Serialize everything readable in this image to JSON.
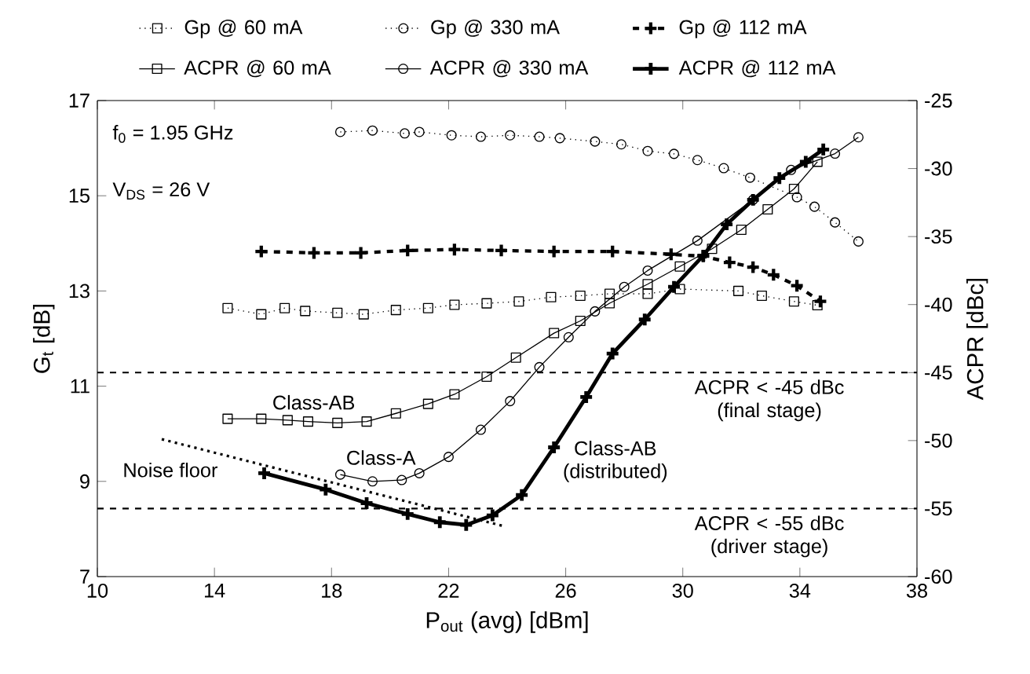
{
  "chart_data": {
    "type": "line",
    "xlabel": "P$_{out}$ (avg) [dBm]",
    "ylabel": "G$_{t}$ [dB]",
    "y2label": "ACPR [dBc]",
    "xlim": [
      10,
      38
    ],
    "xticks": [
      10,
      14,
      18,
      22,
      26,
      30,
      34,
      38
    ],
    "ylim": [
      7,
      17
    ],
    "yticks": [
      7,
      9,
      11,
      13,
      15,
      17
    ],
    "y2lim": [
      -60,
      -25
    ],
    "y2ticks": [
      -60,
      -55,
      -50,
      -45,
      -40,
      -35,
      -30,
      -25
    ],
    "legend": "top",
    "grid": false,
    "series": [
      {
        "name": "Gp @ 60 mA",
        "color": "#000000",
        "marker": "square",
        "line_style": "dotted",
        "x": [
          14.45,
          15.6,
          16.4,
          17.1,
          18.2,
          19.1,
          20.2,
          21.3,
          22.2,
          23.3,
          24.4,
          25.5,
          26.5,
          27.5,
          28.8,
          29.9,
          31.9,
          32.7,
          33.8,
          34.6
        ],
        "values": [
          12.64,
          12.51,
          12.64,
          12.58,
          12.54,
          12.51,
          12.6,
          12.64,
          12.71,
          12.74,
          12.78,
          12.87,
          12.9,
          12.94,
          12.94,
          13.04,
          13.0,
          12.9,
          12.78,
          12.7
        ]
      },
      {
        "name": "Gp @ 330 mA",
        "color": "#000000",
        "marker": "circle",
        "line_style": "dotted",
        "x": [
          18.3,
          19.4,
          20.5,
          21.0,
          22.1,
          23.1,
          24.1,
          25.1,
          25.8,
          27.0,
          27.9,
          28.8,
          29.7,
          30.5,
          31.4,
          32.3,
          33.9,
          34.5,
          35.2,
          36.0
        ],
        "values": [
          16.34,
          16.37,
          16.31,
          16.34,
          16.27,
          16.24,
          16.27,
          16.24,
          16.21,
          16.14,
          16.08,
          15.94,
          15.88,
          15.75,
          15.58,
          15.38,
          14.97,
          14.77,
          14.44,
          14.04
        ]
      },
      {
        "name": "Gp @ 112 mA",
        "color": "#000000",
        "marker": "cross",
        "line_style": "dashed",
        "x": [
          15.6,
          17.4,
          19.0,
          20.6,
          22.2,
          23.8,
          25.6,
          27.6,
          29.6,
          30.7,
          31.6,
          32.4,
          33.1,
          33.9,
          34.7
        ],
        "values": [
          13.83,
          13.8,
          13.8,
          13.85,
          13.87,
          13.85,
          13.83,
          13.83,
          13.77,
          13.73,
          13.6,
          13.5,
          13.34,
          13.11,
          12.78
        ]
      },
      {
        "name": "ACPR @ 60 mA",
        "color": "#000000",
        "marker": "square",
        "line_style": "solid",
        "axis": "y2",
        "x": [
          14.45,
          15.6,
          16.5,
          17.2,
          18.2,
          19.2,
          20.2,
          21.3,
          22.2,
          23.3,
          24.3,
          25.6,
          26.5,
          27.5,
          28.8,
          29.9,
          31.0,
          32.0,
          32.9,
          33.8,
          34.6
        ],
        "values": [
          -48.4,
          -48.4,
          -48.5,
          -48.6,
          -48.7,
          -48.6,
          -48.0,
          -47.3,
          -46.6,
          -45.3,
          -43.9,
          -42.1,
          -41.2,
          -39.9,
          -38.5,
          -37.2,
          -35.9,
          -34.5,
          -33.0,
          -31.5,
          -29.5
        ]
      },
      {
        "name": "ACPR @ 330 mA",
        "color": "#000000",
        "marker": "circle",
        "line_style": "solid",
        "axis": "y2",
        "x": [
          18.3,
          19.4,
          20.4,
          21.0,
          22.0,
          23.1,
          24.1,
          25.1,
          26.1,
          27.0,
          28.0,
          28.8,
          30.5,
          32.4,
          33.7,
          35.2,
          36.0
        ],
        "values": [
          -52.5,
          -53.0,
          -52.9,
          -52.4,
          -51.2,
          -49.2,
          -47.1,
          -44.6,
          -42.4,
          -40.5,
          -38.7,
          -37.5,
          -35.3,
          -32.3,
          -30.1,
          -28.9,
          -27.7
        ]
      },
      {
        "name": "ACPR @ 112 mA",
        "color": "#000000",
        "marker": "cross",
        "line_style": "solid",
        "axis": "y2",
        "x": [
          15.7,
          17.8,
          19.2,
          20.6,
          21.7,
          22.6,
          23.5,
          24.5,
          25.6,
          26.7,
          27.6,
          28.7,
          29.7,
          30.7,
          31.5,
          32.4,
          33.3,
          34.2,
          34.8
        ],
        "values": [
          -52.4,
          -53.6,
          -54.6,
          -55.4,
          -56.0,
          -56.2,
          -55.5,
          -54.0,
          -50.5,
          -46.8,
          -43.6,
          -41.1,
          -38.7,
          -36.4,
          -34.1,
          -32.3,
          -30.7,
          -29.5,
          -28.6
        ]
      },
      {
        "color": "#000000",
        "marker": "none",
        "line_style": "dotted",
        "axis": "y2",
        "x": [
          12.2,
          23.9
        ],
        "values": [
          -49.9,
          -56.3
        ]
      }
    ],
    "ref_lines": [
      {
        "axis": "y2",
        "value": -45,
        "label": "ACPR < -45 dBc (final stage)",
        "line_style": "dashed",
        "color": "#000000"
      },
      {
        "axis": "y2",
        "value": -55,
        "label": "ACPR < -55 dBc (driver stage)",
        "line_style": "dashed",
        "color": "#000000"
      }
    ],
    "annotations": [
      "f$_{0}$ = 1.95 GHz",
      "V$_{DS}$ = 26 V",
      "Class-AB",
      "Class-A",
      "Noise floor",
      "Class-AB",
      "(distributed)"
    ]
  }
}
